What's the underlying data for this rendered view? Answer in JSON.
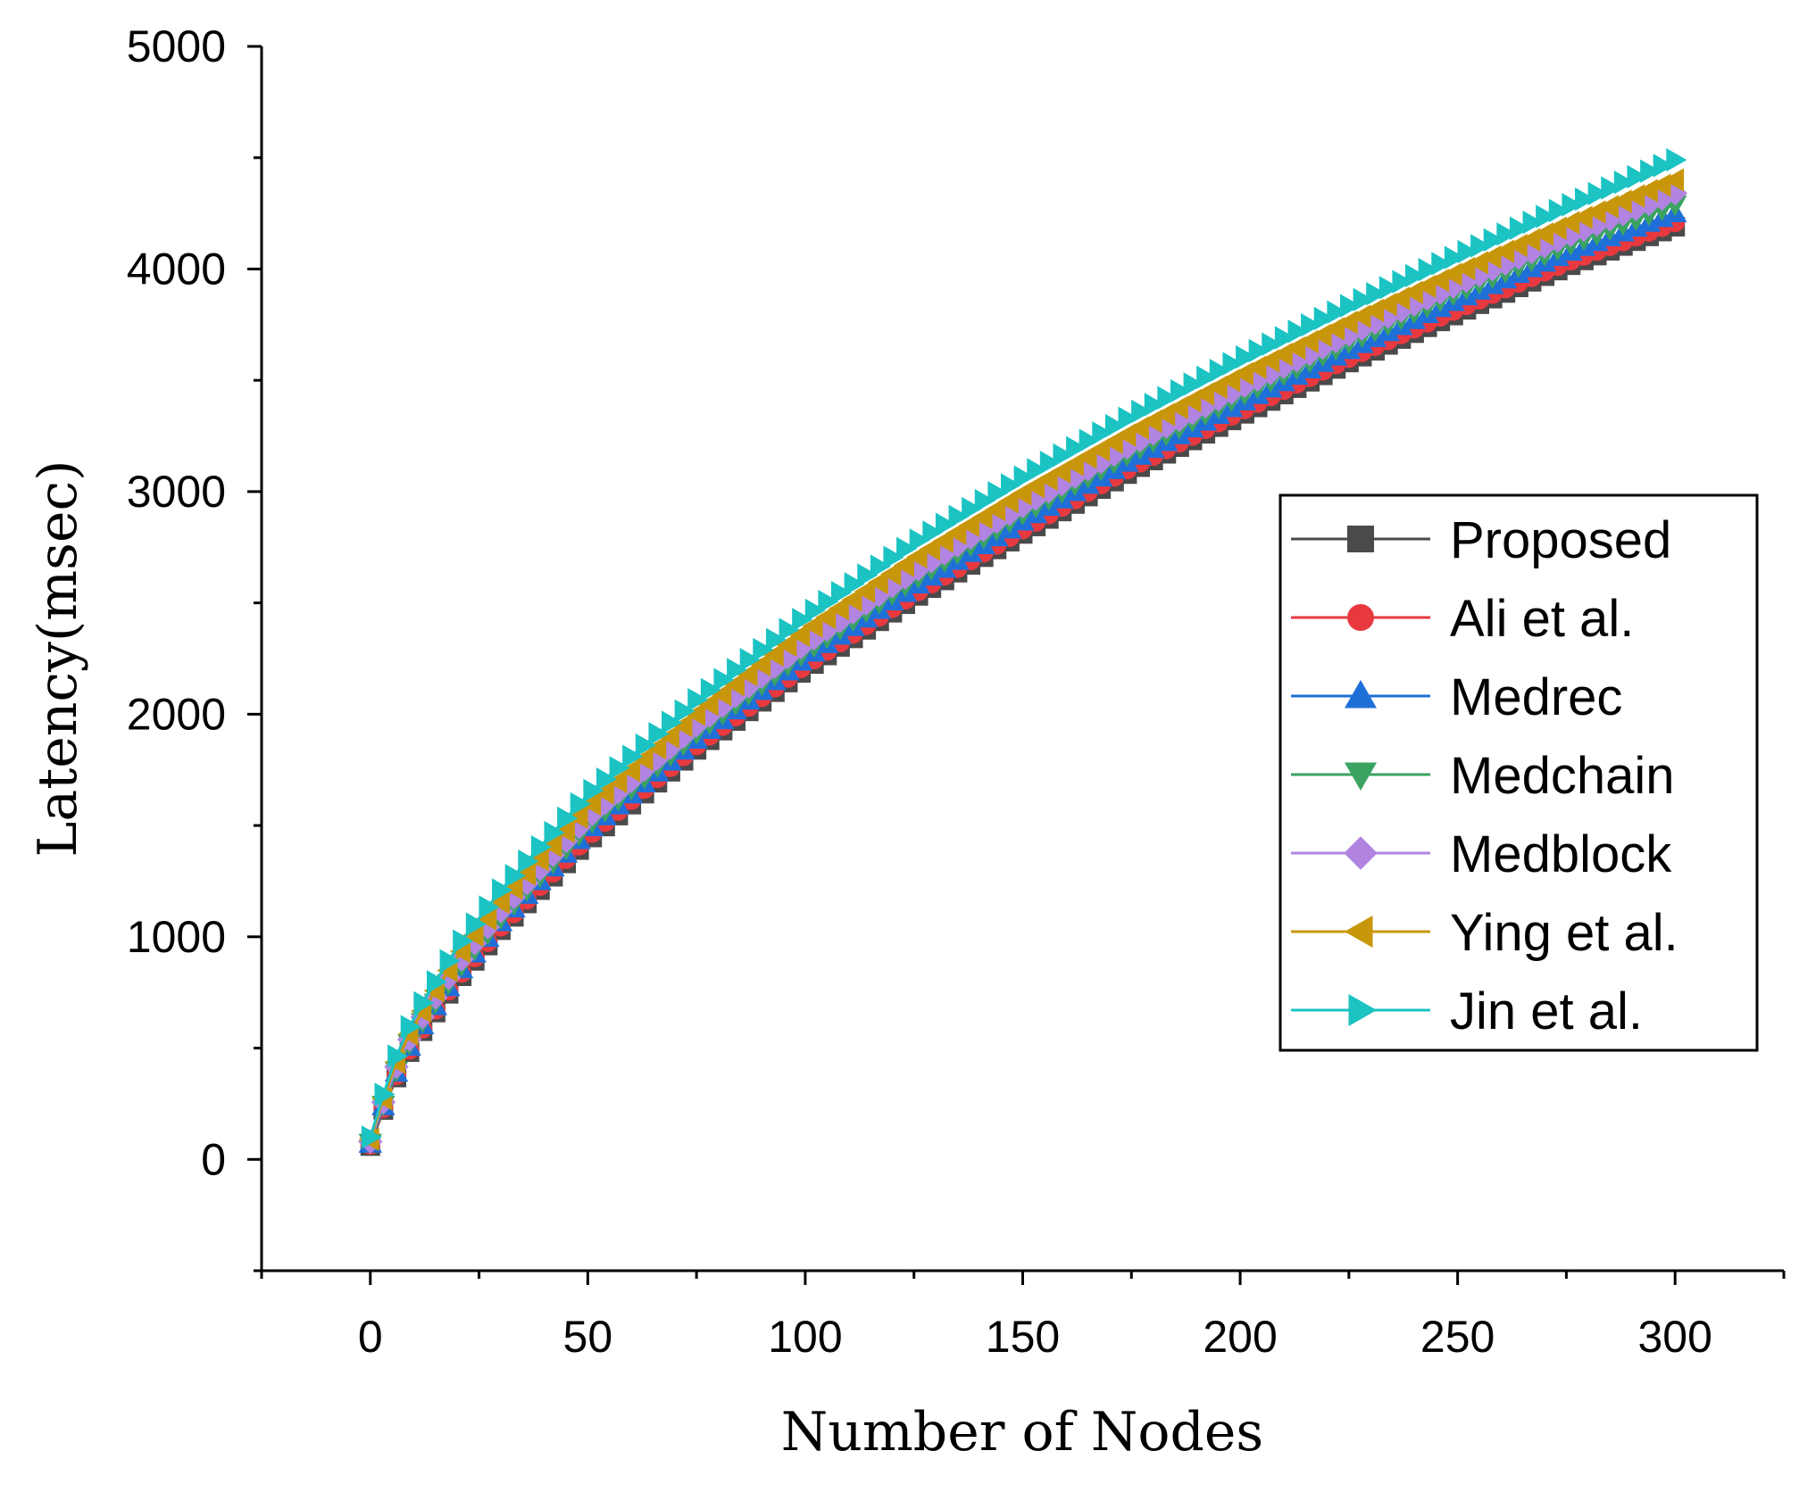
{
  "chart_data": {
    "type": "line",
    "title": "",
    "xlabel": "Number of Nodes",
    "ylabel": "Latency(msec)",
    "xlim": [
      -25,
      325
    ],
    "ylim": [
      -500,
      5000
    ],
    "xticks": [
      0,
      50,
      100,
      150,
      200,
      250,
      300
    ],
    "xtick_labels": [
      "0",
      "50",
      "100",
      "150",
      "200",
      "250",
      "300"
    ],
    "yticks": [
      0,
      1000,
      2000,
      3000,
      4000,
      5000
    ],
    "ytick_labels": [
      "0",
      "1000",
      "2000",
      "3000",
      "4000",
      "5000"
    ],
    "legend_position": "right",
    "x": [
      0,
      5,
      10,
      20,
      30,
      50,
      75,
      100,
      125,
      150,
      175,
      200,
      225,
      250,
      275,
      300
    ],
    "series": [
      {
        "name": "Proposed",
        "marker": "square",
        "color": "#4a4a4a",
        "values": [
          60,
          330,
          520,
          800,
          1030,
          1430,
          1840,
          2200,
          2520,
          2810,
          3090,
          3340,
          3580,
          3800,
          4010,
          4190
        ]
      },
      {
        "name": "Ali et al.",
        "marker": "circle",
        "color": "#e8393f",
        "values": [
          65,
          340,
          530,
          815,
          1045,
          1450,
          1860,
          2220,
          2540,
          2830,
          3110,
          3360,
          3600,
          3820,
          4030,
          4210
        ]
      },
      {
        "name": "Medrec",
        "marker": "triangle-up",
        "color": "#1f6fd8",
        "values": [
          70,
          350,
          545,
          830,
          1065,
          1475,
          1885,
          2250,
          2570,
          2865,
          3140,
          3395,
          3635,
          3860,
          4070,
          4250
        ]
      },
      {
        "name": "Medchain",
        "marker": "triangle-down",
        "color": "#3aa362",
        "values": [
          75,
          360,
          560,
          850,
          1085,
          1500,
          1915,
          2280,
          2605,
          2900,
          3175,
          3430,
          3670,
          3895,
          4105,
          4290
        ]
      },
      {
        "name": "Medblock",
        "marker": "diamond",
        "color": "#b084e0",
        "values": [
          80,
          375,
          580,
          875,
          1115,
          1535,
          1950,
          2315,
          2640,
          2935,
          3210,
          3465,
          3705,
          3930,
          4145,
          4340
        ]
      },
      {
        "name": "Ying et al.",
        "marker": "triangle-left",
        "color": "#c8960a",
        "values": [
          90,
          395,
          605,
          910,
          1155,
          1580,
          2000,
          2370,
          2695,
          2990,
          3265,
          3520,
          3760,
          3985,
          4200,
          4400
        ]
      },
      {
        "name": "Jin et al.",
        "marker": "triangle-right",
        "color": "#1cc3c3",
        "values": [
          100,
          420,
          640,
          955,
          1210,
          1640,
          2065,
          2440,
          2770,
          3065,
          3340,
          3595,
          3835,
          4060,
          4280,
          4490
        ]
      }
    ]
  }
}
